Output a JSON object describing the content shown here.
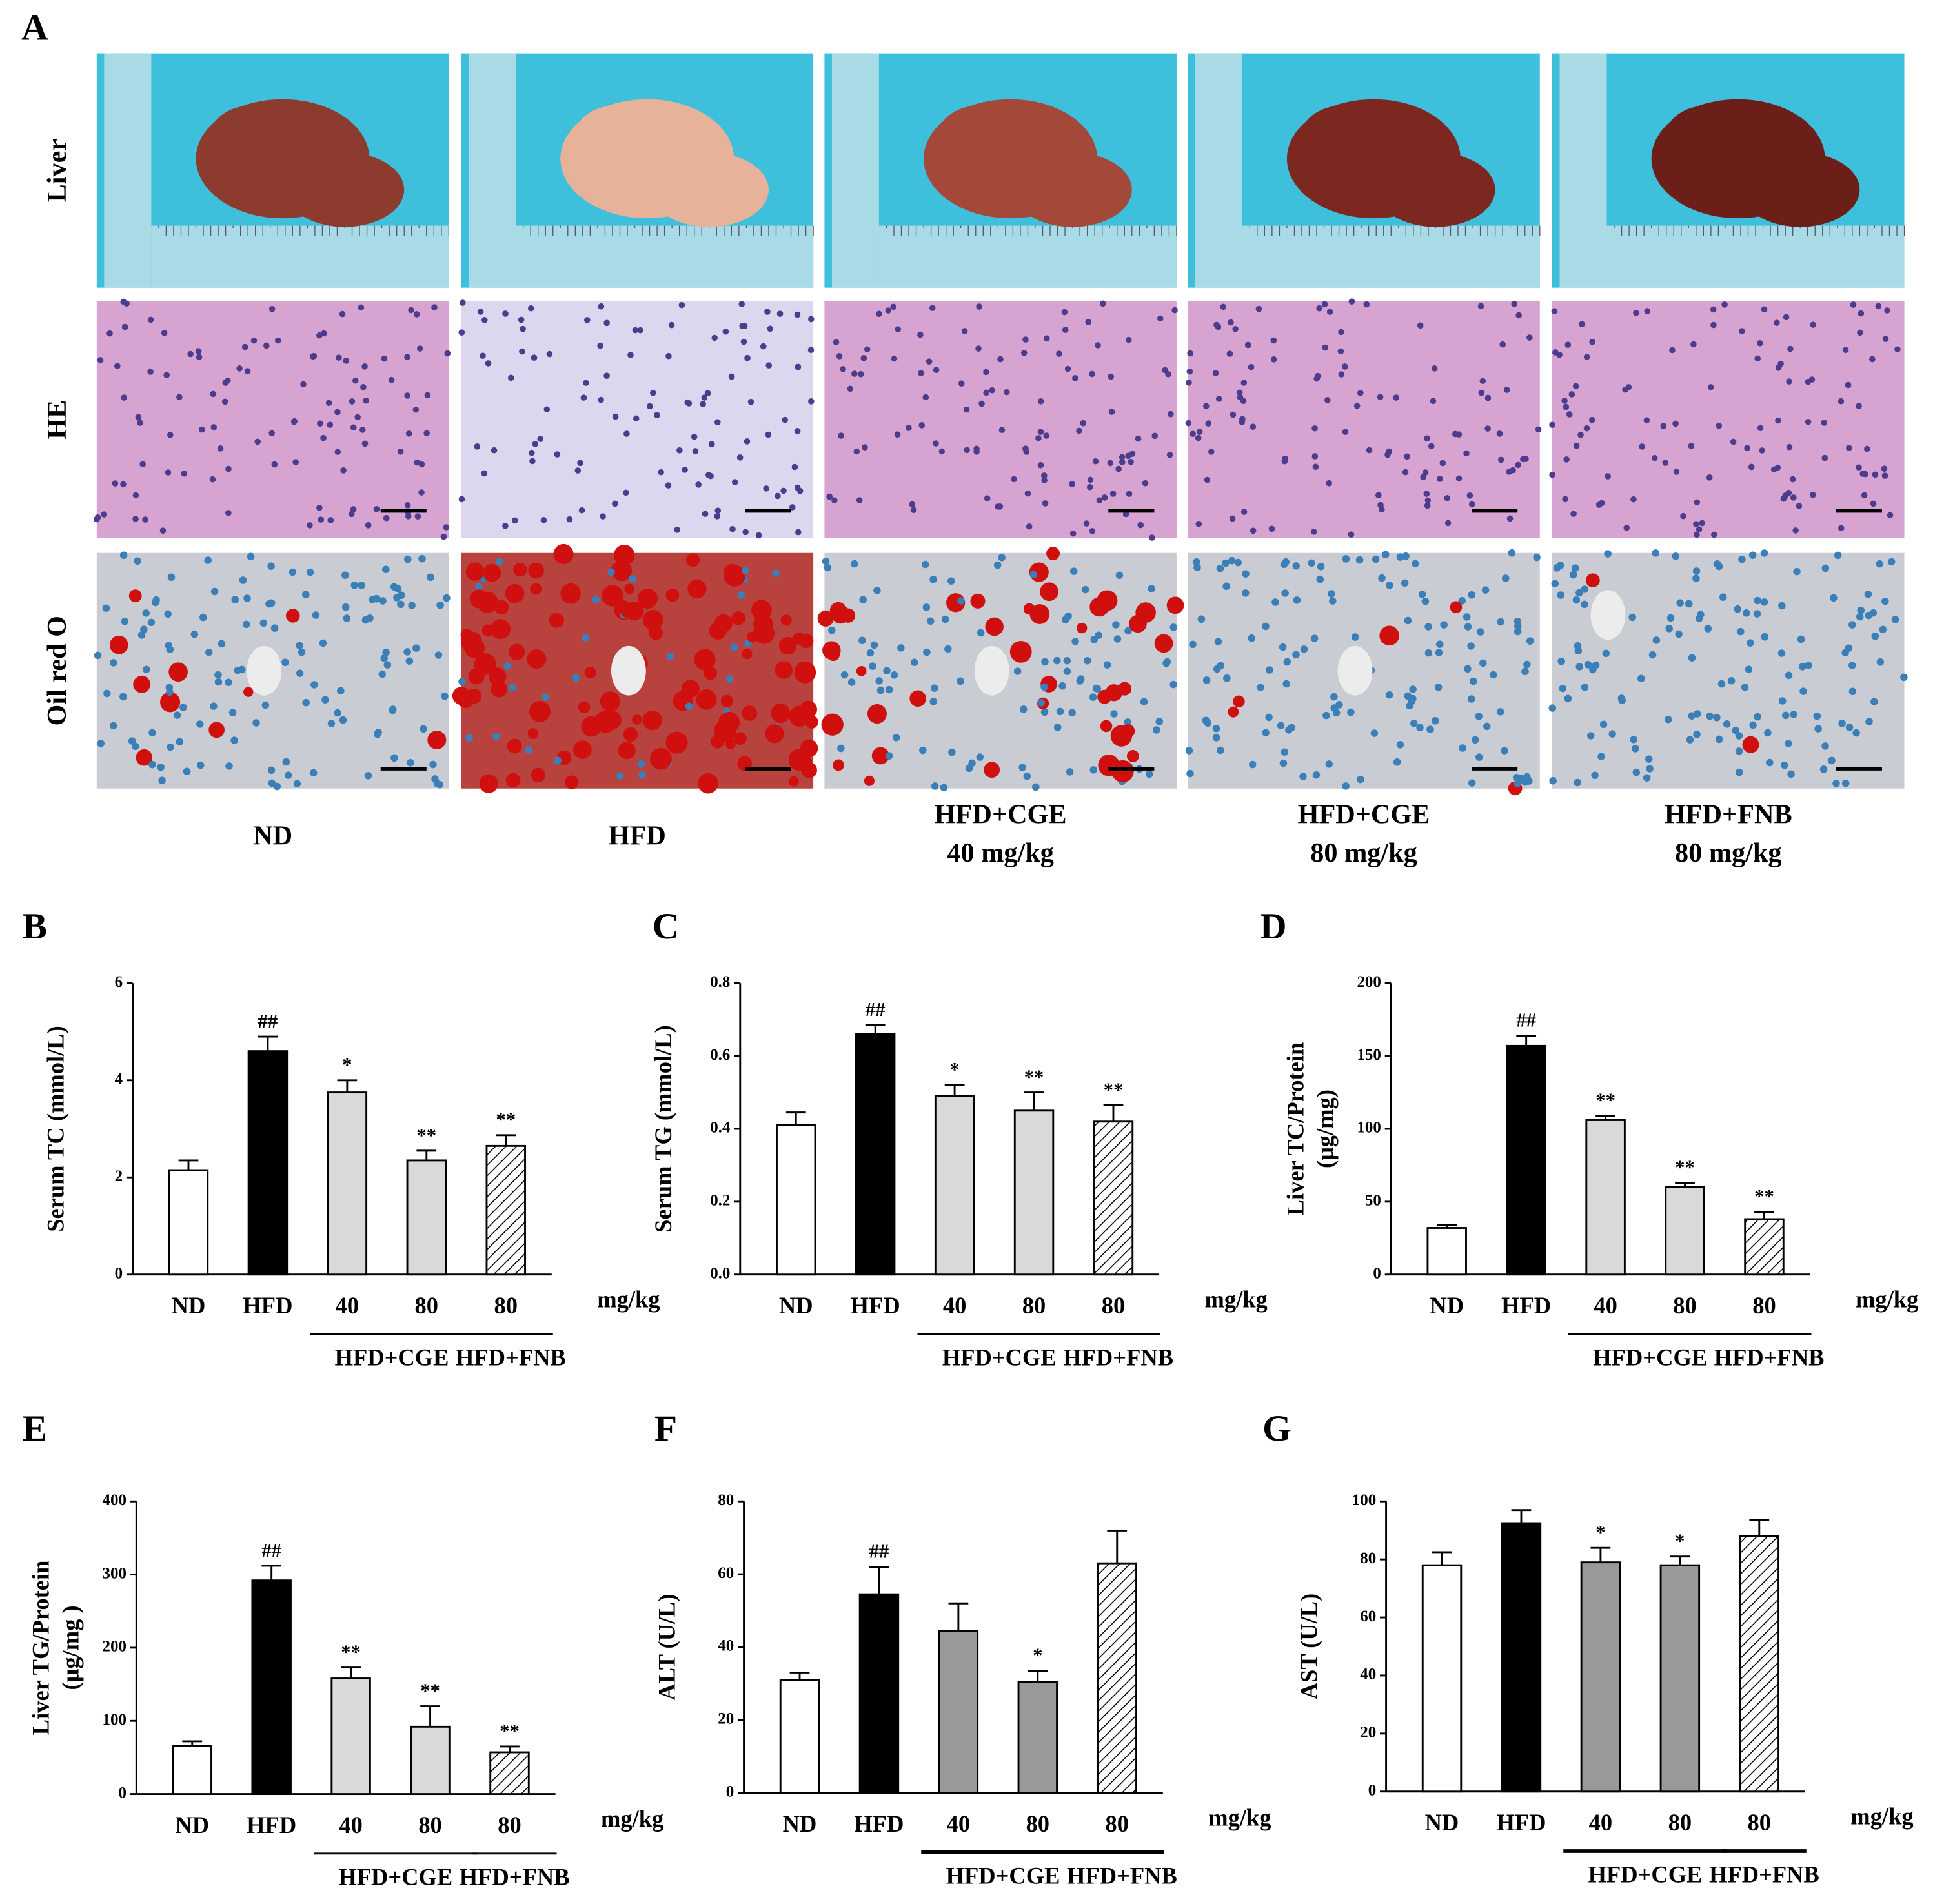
{
  "panel_a": {
    "label": "A",
    "rows": [
      "Liver",
      "HE",
      "Oil red O"
    ],
    "groups": [
      [
        "ND"
      ],
      [
        "HFD"
      ],
      [
        "HFD+CGE",
        "40 mg/kg"
      ],
      [
        "HFD+CGE",
        "80 mg/kg"
      ],
      [
        "HFD+FNB",
        "80 mg/kg"
      ]
    ]
  },
  "chart_data": [
    {
      "type": "bar",
      "panel": "B",
      "ylabel": [
        "Serum TC (mmol/L)"
      ],
      "categories": [
        "ND",
        "HFD",
        "40",
        "80",
        "80"
      ],
      "unit": "mg/kg",
      "groups": [
        "HFD+CGE",
        "HFD+FNB"
      ],
      "values": [
        2.15,
        4.6,
        3.75,
        2.35,
        2.65
      ],
      "errors": [
        0.2,
        0.3,
        0.25,
        0.2,
        0.22
      ],
      "colors": [
        "#ffffff",
        "#000000",
        "#d9d9d9",
        "#d9d9d9",
        "hatch"
      ],
      "annotations": [
        null,
        "##",
        "*",
        "**",
        "**"
      ],
      "ylim": [
        0,
        6
      ],
      "yticks": [
        0,
        2,
        4,
        6
      ]
    },
    {
      "type": "bar",
      "panel": "C",
      "ylabel": [
        "Serum TG (mmol/L)"
      ],
      "categories": [
        "ND",
        "HFD",
        "40",
        "80",
        "80"
      ],
      "unit": "mg/kg",
      "groups": [
        "HFD+CGE",
        "HFD+FNB"
      ],
      "values": [
        0.41,
        0.66,
        0.49,
        0.45,
        0.42
      ],
      "errors": [
        0.035,
        0.025,
        0.03,
        0.05,
        0.045
      ],
      "colors": [
        "#ffffff",
        "#000000",
        "#d9d9d9",
        "#d9d9d9",
        "hatch"
      ],
      "annotations": [
        null,
        "##",
        "*",
        "**",
        "**"
      ],
      "ylim": [
        0,
        0.8
      ],
      "yticks": [
        {
          "value": 0,
          "label": "0.0"
        },
        0.2,
        0.4,
        0.6,
        0.8
      ]
    },
    {
      "type": "bar",
      "panel": "D",
      "ylabel": [
        "Liver TC/Protein",
        "(μg/mg)"
      ],
      "categories": [
        "ND",
        "HFD",
        "40",
        "80",
        "80"
      ],
      "unit": "mg/kg",
      "groups": [
        "HFD+CGE",
        "HFD+FNB"
      ],
      "values": [
        32,
        157,
        106,
        60,
        38
      ],
      "errors": [
        2,
        7,
        3,
        3,
        5
      ],
      "colors": [
        "#ffffff",
        "#000000",
        "#d9d9d9",
        "#d9d9d9",
        "hatch"
      ],
      "annotations": [
        null,
        "##",
        "**",
        "**",
        "**"
      ],
      "ylim": [
        0,
        200
      ],
      "yticks": [
        0,
        50,
        100,
        150,
        200
      ]
    },
    {
      "type": "bar",
      "panel": "E",
      "ylabel": [
        "Liver TG/Protein",
        "(μg/mg )"
      ],
      "categories": [
        "ND",
        "HFD",
        "40",
        "80",
        "80"
      ],
      "unit": "mg/kg",
      "groups": [
        "HFD+CGE",
        "HFD+FNB"
      ],
      "values": [
        66,
        292,
        158,
        92,
        57
      ],
      "errors": [
        6,
        20,
        15,
        28,
        8
      ],
      "colors": [
        "#ffffff",
        "#000000",
        "#d9d9d9",
        "#d9d9d9",
        "hatch"
      ],
      "annotations": [
        null,
        "##",
        "**",
        "**",
        "**"
      ],
      "ylim": [
        0,
        400
      ],
      "yticks": [
        0,
        100,
        200,
        300,
        400
      ]
    },
    {
      "type": "bar",
      "panel": "F",
      "ylabel": [
        "ALT (U/L)"
      ],
      "categories": [
        "ND",
        "HFD",
        "40",
        "80",
        "80"
      ],
      "unit": "mg/kg",
      "groups": [
        "HFD+CGE",
        "HFD+FNB"
      ],
      "values": [
        31,
        54.5,
        44.5,
        30.5,
        63
      ],
      "errors": [
        2,
        7.5,
        7.5,
        3,
        9
      ],
      "colors": [
        "#ffffff",
        "#000000",
        "#999999",
        "#999999",
        "hatch"
      ],
      "annotations": [
        null,
        "##",
        null,
        "*",
        null
      ],
      "ylim": [
        0,
        80
      ],
      "yticks": [
        0,
        20,
        40,
        60,
        80
      ]
    },
    {
      "type": "bar",
      "panel": "G",
      "ylabel": [
        "AST (U/L)"
      ],
      "categories": [
        "ND",
        "HFD",
        "40",
        "80",
        "80"
      ],
      "unit": "mg/kg",
      "groups": [
        "HFD+CGE",
        "HFD+FNB"
      ],
      "values": [
        78,
        92.5,
        79,
        78,
        88
      ],
      "errors": [
        4.5,
        4.5,
        5,
        3,
        5.5
      ],
      "colors": [
        "#ffffff",
        "#000000",
        "#999999",
        "#999999",
        "hatch"
      ],
      "annotations": [
        null,
        null,
        "*",
        "*",
        null
      ],
      "ylim": [
        0,
        100
      ],
      "yticks": [
        0,
        20,
        40,
        60,
        80,
        100
      ]
    }
  ]
}
